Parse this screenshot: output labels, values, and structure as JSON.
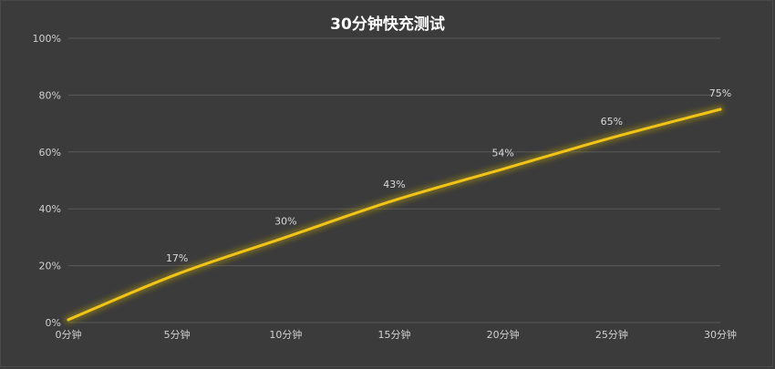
{
  "chart_data": {
    "type": "line",
    "title": "30分钟快充测试",
    "categories": [
      "0分钟",
      "5分钟",
      "10分钟",
      "15分钟",
      "20分钟",
      "25分钟",
      "30分钟"
    ],
    "series": [
      {
        "values": [
          1,
          17,
          30,
          43,
          54,
          65,
          75
        ],
        "labels": [
          "",
          "17%",
          "30%",
          "43%",
          "54%",
          "65%",
          "75%"
        ]
      }
    ],
    "y_ticks": [
      "0%",
      "20%",
      "40%",
      "60%",
      "80%",
      "100%"
    ],
    "ylim": [
      0,
      100
    ],
    "grid": true,
    "legend": "none",
    "colors": {
      "background": "#3b3b3b",
      "line": "#f2c418",
      "glow": "#a08a10",
      "grid": "#5a5a5a",
      "text": "#d0d0d0",
      "title": "#ffffff"
    }
  }
}
